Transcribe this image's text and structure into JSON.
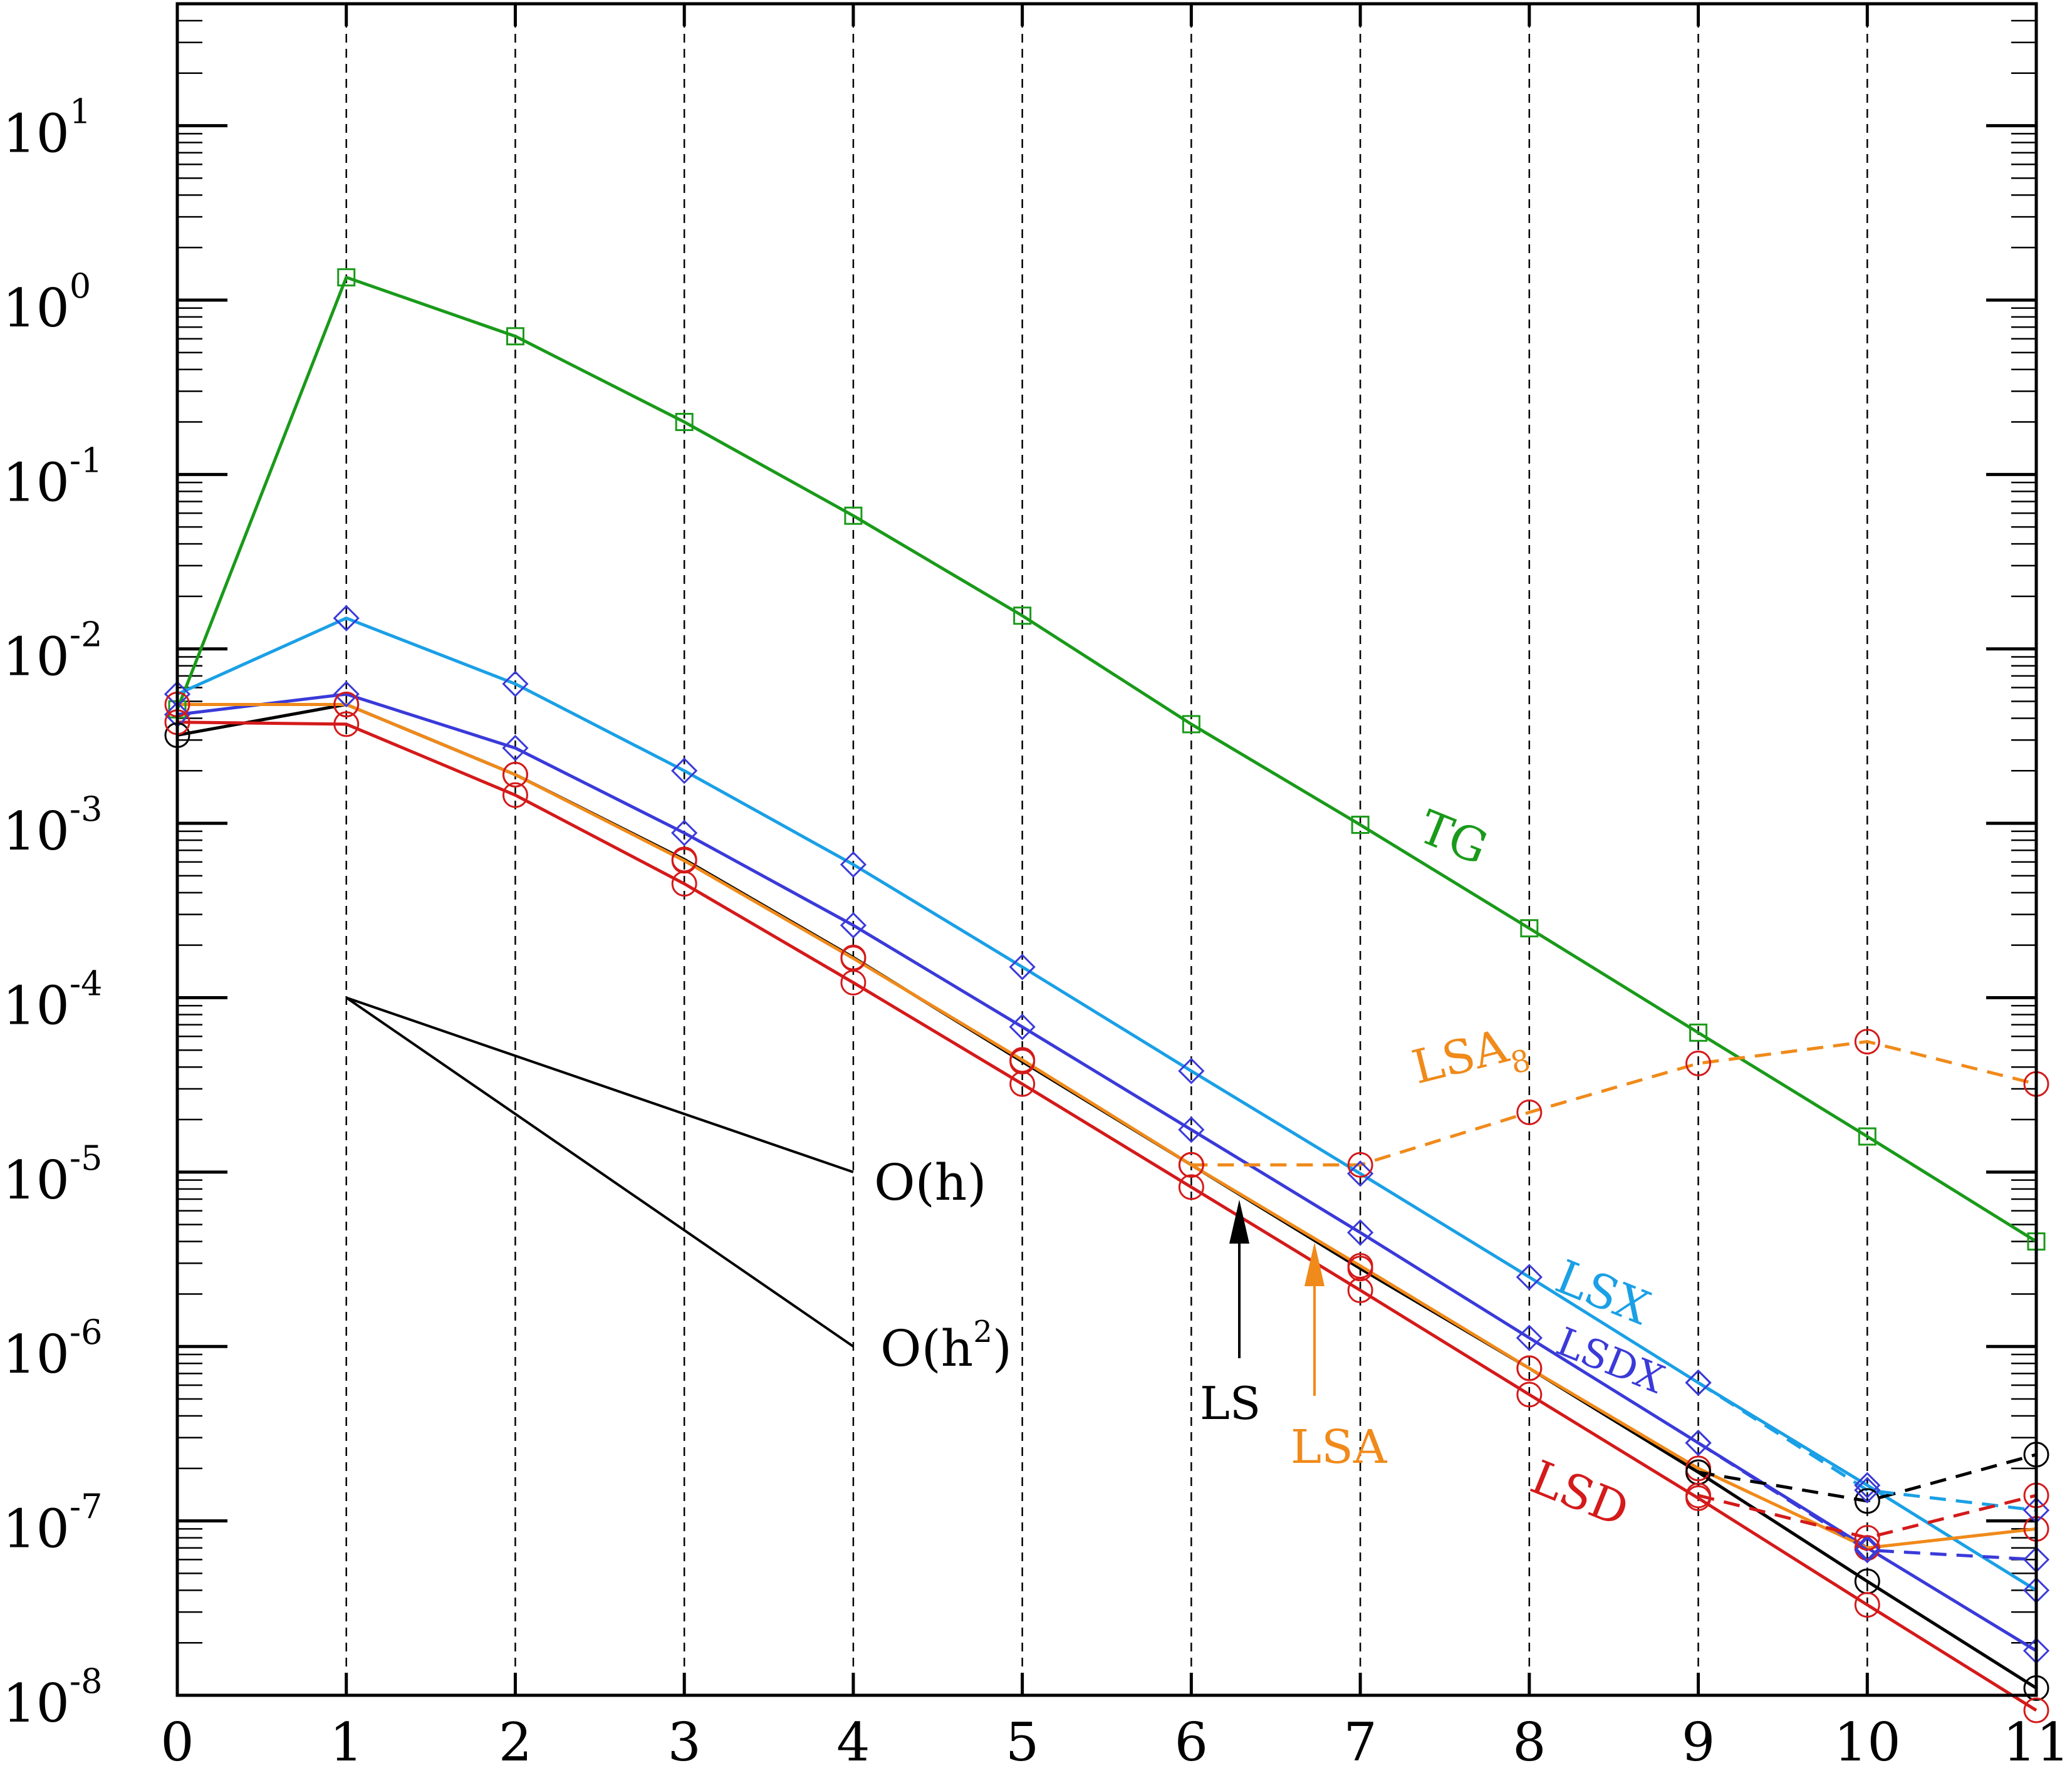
{
  "chart_data": {
    "type": "line",
    "title": "",
    "xlabel": "",
    "ylabel": "",
    "xlim": [
      0,
      11
    ],
    "ylim": [
      1e-08,
      50
    ],
    "yscale": "log",
    "grid": "vertical dashed lines at integer x",
    "x_ticks": [
      "0",
      "1",
      "2",
      "3",
      "4",
      "5",
      "6",
      "7",
      "8",
      "9",
      "10",
      "11"
    ],
    "y_ticks": [
      {
        "value": 1e-08,
        "base": "10",
        "exp": "-8"
      },
      {
        "value": 1e-07,
        "base": "10",
        "exp": "-7"
      },
      {
        "value": 1e-06,
        "base": "10",
        "exp": "-6"
      },
      {
        "value": 1e-05,
        "base": "10",
        "exp": "-5"
      },
      {
        "value": 0.0001,
        "base": "10",
        "exp": "-4"
      },
      {
        "value": 0.001,
        "base": "10",
        "exp": "-3"
      },
      {
        "value": 0.01,
        "base": "10",
        "exp": "-2"
      },
      {
        "value": 0.1,
        "base": "10",
        "exp": "-1"
      },
      {
        "value": 1,
        "base": "10",
        "exp": "0"
      },
      {
        "value": 10,
        "base": "10",
        "exp": "1"
      }
    ],
    "series": [
      {
        "name": "TG",
        "color": "#1a9a1a",
        "marker": "square",
        "dash": false,
        "x": [
          0,
          1,
          2,
          3,
          4,
          5,
          6,
          7,
          8,
          9,
          10,
          11
        ],
        "y": [
          0.0045,
          1.35,
          0.62,
          0.2,
          0.058,
          0.0155,
          0.0037,
          0.00098,
          0.00025,
          6.3e-05,
          1.6e-05,
          4e-06
        ]
      },
      {
        "name": "LSX",
        "color": "#1aa0e6",
        "marker": "diamond",
        "dash": false,
        "x": [
          0,
          1,
          2,
          3,
          4,
          5,
          6,
          7,
          8,
          9,
          10,
          11
        ],
        "y": [
          0.0055,
          0.015,
          0.0063,
          0.002,
          0.00058,
          0.00015,
          3.8e-05,
          9.8e-06,
          2.5e-06,
          6.2e-07,
          1.6e-07,
          4e-08
        ]
      },
      {
        "name": "LSDX",
        "color": "#3a3ad9",
        "marker": "diamond",
        "dash": false,
        "x": [
          0,
          1,
          2,
          3,
          4,
          5,
          6,
          7,
          8,
          9,
          10,
          11
        ],
        "y": [
          0.0042,
          0.0055,
          0.0027,
          0.00088,
          0.00026,
          6.8e-05,
          1.75e-05,
          4.5e-06,
          1.12e-06,
          2.8e-07,
          7e-08,
          1.8e-08
        ]
      },
      {
        "name": "LS",
        "color": "#000000",
        "marker": "circle",
        "dash": false,
        "x": [
          0,
          1,
          2,
          3,
          4,
          5,
          6,
          7,
          8,
          9,
          10,
          11
        ],
        "y": [
          0.0032,
          0.0048,
          0.0019,
          0.00062,
          0.00017,
          4.3e-05,
          1.1e-05,
          2.8e-06,
          7.5e-07,
          1.9e-07,
          4.5e-08,
          1.1e-08
        ]
      },
      {
        "name": "LSA",
        "color": "#f08a1a",
        "marker": "circle",
        "dash": false,
        "x": [
          0,
          1,
          2,
          3,
          4,
          5,
          6,
          7,
          8,
          9,
          10,
          11
        ],
        "y": [
          0.0048,
          0.0048,
          0.0019,
          0.00061,
          0.000168,
          4.4e-05,
          1.1e-05,
          2.9e-06,
          7.5e-07,
          2e-07,
          7e-08,
          9e-08
        ]
      },
      {
        "name": "LSD",
        "color": "#d41a1a",
        "marker": "circle",
        "dash": false,
        "x": [
          0,
          1,
          2,
          3,
          4,
          5,
          6,
          7,
          8,
          9,
          10,
          11
        ],
        "y": [
          0.0038,
          0.0037,
          0.00145,
          0.00045,
          0.000122,
          3.2e-05,
          8.2e-06,
          2.1e-06,
          5.3e-07,
          1.35e-07,
          3.3e-08,
          8.2e-09
        ]
      },
      {
        "name": "LSA8",
        "color": "#f08a1a",
        "marker": "circle",
        "dash": true,
        "x": [
          6,
          7,
          8,
          9,
          10,
          11
        ],
        "y": [
          1.1e-05,
          1.1e-05,
          2.2e-05,
          4.2e-05,
          5.6e-05,
          3.2e-05
        ]
      },
      {
        "name": "LS-dashed",
        "color": "#000000",
        "marker": "circle",
        "dash": true,
        "x": [
          9,
          10,
          11
        ],
        "y": [
          1.9e-07,
          1.3e-07,
          2.4e-07
        ]
      },
      {
        "name": "LSX-dashed",
        "color": "#1aa0e6",
        "marker": "diamond",
        "dash": true,
        "x": [
          9,
          10,
          11
        ],
        "y": [
          6.2e-07,
          1.5e-07,
          1.15e-07
        ]
      },
      {
        "name": "LSDX-dashed",
        "color": "#3a3ad9",
        "marker": "diamond",
        "dash": true,
        "x": [
          9,
          10,
          11
        ],
        "y": [
          2.8e-07,
          6.8e-08,
          6e-08
        ]
      },
      {
        "name": "LSD-dashed",
        "color": "#d41a1a",
        "marker": "circle",
        "dash": true,
        "x": [
          9,
          10,
          11
        ],
        "y": [
          1.4e-07,
          8e-08,
          1.4e-07
        ]
      }
    ],
    "reference_lines": [
      {
        "label": "O(h)",
        "x": [
          1,
          4
        ],
        "y": [
          0.0001,
          1e-05
        ]
      },
      {
        "label": "O(h²)",
        "x": [
          1,
          4
        ],
        "y": [
          0.0001,
          1e-06
        ]
      }
    ],
    "labels": {
      "TG": "TG",
      "LSX": "LSX",
      "LSDX": "LSDX",
      "LS": "LS",
      "LSA": "LSA",
      "LSD": "LSD",
      "LSA8_base": "LSA",
      "LSA8_sub": "8",
      "Oh": "O(h)",
      "Oh2_base": "O(h",
      "Oh2_sup": "2",
      "Oh2_close": ")"
    }
  }
}
